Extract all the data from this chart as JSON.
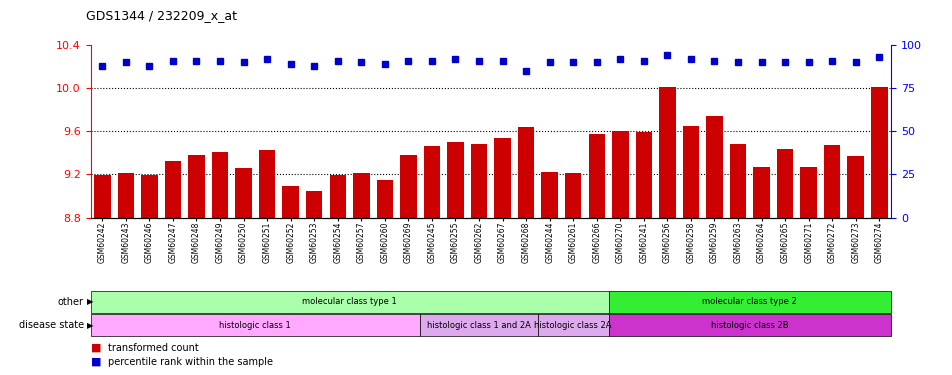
{
  "title": "GDS1344 / 232209_x_at",
  "samples": [
    "GSM60242",
    "GSM60243",
    "GSM60246",
    "GSM60247",
    "GSM60248",
    "GSM60249",
    "GSM60250",
    "GSM60251",
    "GSM60252",
    "GSM60253",
    "GSM60254",
    "GSM60257",
    "GSM60260",
    "GSM60269",
    "GSM60245",
    "GSM60255",
    "GSM60262",
    "GSM60267",
    "GSM60268",
    "GSM60244",
    "GSM60261",
    "GSM60266",
    "GSM60270",
    "GSM60241",
    "GSM60256",
    "GSM60258",
    "GSM60259",
    "GSM60263",
    "GSM60264",
    "GSM60265",
    "GSM60271",
    "GSM60272",
    "GSM60273",
    "GSM60274"
  ],
  "bar_values": [
    9.19,
    9.21,
    9.19,
    9.32,
    9.38,
    9.41,
    9.26,
    9.43,
    9.09,
    9.05,
    9.19,
    9.21,
    9.15,
    9.38,
    9.46,
    9.5,
    9.48,
    9.54,
    9.64,
    9.22,
    9.21,
    9.57,
    9.6,
    9.59,
    10.01,
    9.65,
    9.74,
    9.48,
    9.27,
    9.44,
    9.27,
    9.47,
    9.37,
    10.01
  ],
  "percentile_values": [
    88,
    90,
    88,
    91,
    91,
    91,
    90,
    92,
    89,
    88,
    91,
    90,
    89,
    91,
    91,
    92,
    91,
    91,
    85,
    90,
    90,
    90,
    92,
    91,
    94,
    92,
    91,
    90,
    90,
    90,
    90,
    91,
    90,
    93
  ],
  "ylim_left": [
    8.8,
    10.4
  ],
  "yticks_left": [
    8.8,
    9.2,
    9.6,
    10.0,
    10.4
  ],
  "ylim_right": [
    0,
    100
  ],
  "yticks_right": [
    0,
    25,
    50,
    75,
    100
  ],
  "bar_color": "#cc0000",
  "dot_color": "#0000cc",
  "bar_bottom": 8.8,
  "group_rows": [
    {
      "label": "other",
      "segments": [
        {
          "text": "molecular class type 1",
          "start": 0,
          "end": 22,
          "color": "#aaffaa"
        },
        {
          "text": "molecular class type 2",
          "start": 22,
          "end": 34,
          "color": "#33ee33"
        }
      ]
    },
    {
      "label": "disease state",
      "segments": [
        {
          "text": "histologic class 1",
          "start": 0,
          "end": 14,
          "color": "#ffaaff"
        },
        {
          "text": "histologic class 1 and 2A",
          "start": 14,
          "end": 19,
          "color": "#ddaaee"
        },
        {
          "text": "histologic class 2A",
          "start": 19,
          "end": 22,
          "color": "#ddaaee"
        },
        {
          "text": "histologic class 2B",
          "start": 22,
          "end": 34,
          "color": "#cc33cc"
        }
      ]
    }
  ]
}
